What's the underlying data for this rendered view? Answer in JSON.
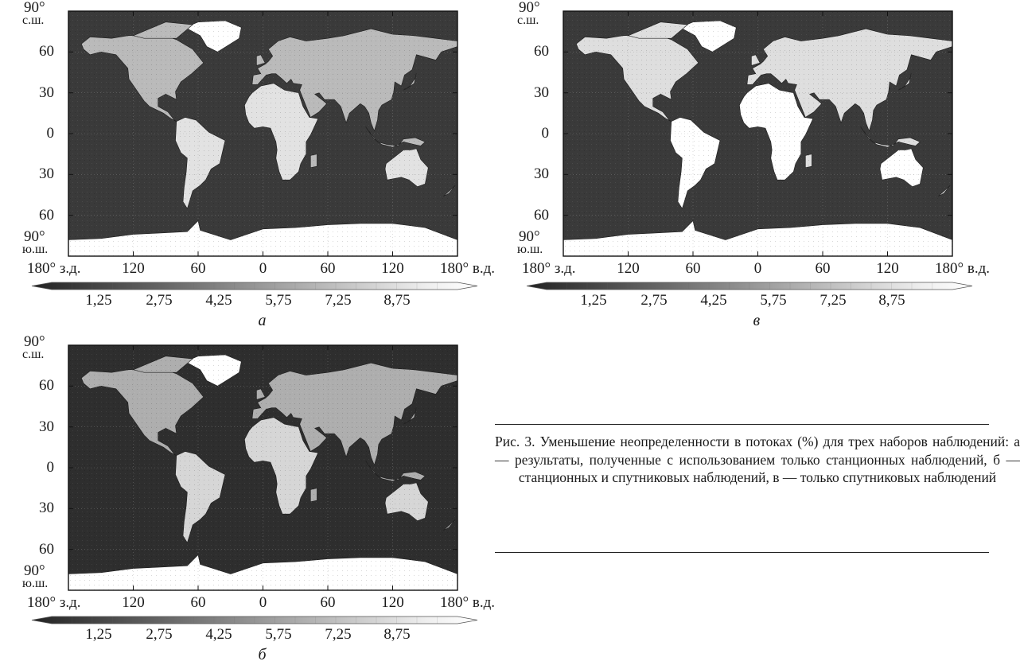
{
  "lat_labels": {
    "top": "90°",
    "top_suffix": "с.ш.",
    "l60n": "60",
    "l30n": "30",
    "l0": "0",
    "l30s": "30",
    "l60s": "60",
    "bottom": "90°",
    "bottom_suffix": "ю.ш."
  },
  "lon_labels": [
    "180° з.д.",
    "120",
    "60",
    "0",
    "60",
    "120",
    "180° в.д."
  ],
  "colorbar": {
    "ticks": [
      "1,25",
      "2,75",
      "4,25",
      "5,75",
      "7,25",
      "8,75"
    ],
    "colors": [
      "#222222",
      "#3c3c3c",
      "#555555",
      "#6e6e6e",
      "#888888",
      "#a2a2a2",
      "#bcbcbc",
      "#d6d6d6",
      "#efefef",
      "#ffffff"
    ]
  },
  "panels": [
    {
      "id": "a",
      "label": "а",
      "ocean_color": "#3a3a3a",
      "land_shade": 0.55
    },
    {
      "id": "v",
      "label": "в",
      "ocean_color": "#3a3a3a",
      "land_shade": 0.85
    },
    {
      "id": "b",
      "label": "б",
      "ocean_color": "#2e2e2e",
      "land_shade": 0.45
    }
  ],
  "caption": "Рис. 3. Уменьшение неопределенности в потоках (%) для трех наборов наблюдений: а — результаты, полученные с использованием только станционных наблюдений, б — станционных и спутниковых наблюдений, в — только спутниковых наблюдений"
}
